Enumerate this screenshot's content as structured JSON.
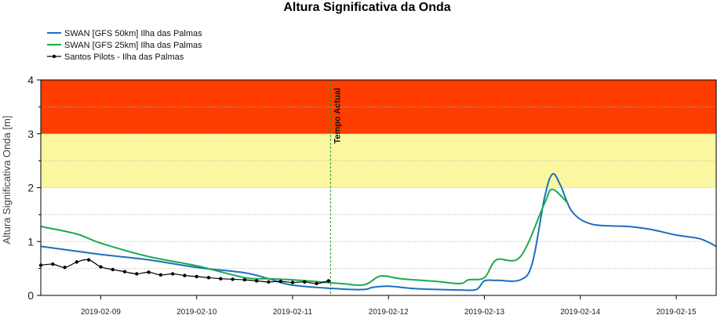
{
  "chart_data": {
    "type": "line",
    "title": "Altura Significativa da Onda",
    "ylabel": "Altura Significativa Onda [m]",
    "xlabel": "",
    "ylim": [
      0,
      4
    ],
    "xlim": [
      "2019-02-08T09:00",
      "2019-02-15T10:00"
    ],
    "yticks": [
      0,
      1,
      2,
      3,
      4
    ],
    "xticks": [
      "2019-02-09",
      "2019-02-10",
      "2019-02-11",
      "2019-02-12",
      "2019-02-13",
      "2019-02-14",
      "2019-02-15"
    ],
    "grid": "horizontal dotted",
    "legend_position": "top-left",
    "bands": [
      {
        "from": 2,
        "to": 3,
        "color": "#fbf7a0"
      },
      {
        "from": 3,
        "to": 4,
        "color": "#ff3d00"
      }
    ],
    "annotations": [
      {
        "text": "Tempo Actual",
        "x": "2019-02-11T09:30",
        "color": "#2a8f2a"
      }
    ],
    "series": [
      {
        "name": "SWAN [GFS 50km] Ilha das Palmas",
        "color": "#1a6fc0",
        "points": [
          [
            "2019-02-08T09:00",
            0.91
          ],
          [
            "2019-02-08T18:00",
            0.82
          ],
          [
            "2019-02-09T00:00",
            0.76
          ],
          [
            "2019-02-09T12:00",
            0.66
          ],
          [
            "2019-02-10T00:00",
            0.52
          ],
          [
            "2019-02-10T12:00",
            0.42
          ],
          [
            "2019-02-10T18:00",
            0.31
          ],
          [
            "2019-02-11T00:00",
            0.19
          ],
          [
            "2019-02-11T12:00",
            0.12
          ],
          [
            "2019-02-11T18:00",
            0.11
          ],
          [
            "2019-02-11T20:00",
            0.15
          ],
          [
            "2019-02-12T00:00",
            0.17
          ],
          [
            "2019-02-12T06:00",
            0.13
          ],
          [
            "2019-02-12T12:00",
            0.11
          ],
          [
            "2019-02-12T18:00",
            0.1
          ],
          [
            "2019-02-12T22:00",
            0.11
          ],
          [
            "2019-02-13T00:00",
            0.27
          ],
          [
            "2019-02-13T03:00",
            0.28
          ],
          [
            "2019-02-13T09:00",
            0.29
          ],
          [
            "2019-02-13T12:00",
            0.6
          ],
          [
            "2019-02-13T15:00",
            1.8
          ],
          [
            "2019-02-13T17:00",
            2.25
          ],
          [
            "2019-02-13T19:00",
            2.05
          ],
          [
            "2019-02-13T22:00",
            1.55
          ],
          [
            "2019-02-14T03:00",
            1.32
          ],
          [
            "2019-02-14T12:00",
            1.28
          ],
          [
            "2019-02-14T18:00",
            1.22
          ],
          [
            "2019-02-15T00:00",
            1.12
          ],
          [
            "2019-02-15T06:00",
            1.05
          ],
          [
            "2019-02-15T10:00",
            0.91
          ]
        ]
      },
      {
        "name": "SWAN [GFS 25km] Ilha das Palmas",
        "color": "#1aaa4a",
        "points": [
          [
            "2019-02-08T09:00",
            1.28
          ],
          [
            "2019-02-08T18:00",
            1.14
          ],
          [
            "2019-02-09T00:00",
            0.97
          ],
          [
            "2019-02-09T12:00",
            0.72
          ],
          [
            "2019-02-10T00:00",
            0.55
          ],
          [
            "2019-02-10T12:00",
            0.33
          ],
          [
            "2019-02-10T18:00",
            0.31
          ],
          [
            "2019-02-11T00:00",
            0.29
          ],
          [
            "2019-02-11T12:00",
            0.22
          ],
          [
            "2019-02-11T18:00",
            0.2
          ],
          [
            "2019-02-11T22:00",
            0.36
          ],
          [
            "2019-02-12T03:00",
            0.31
          ],
          [
            "2019-02-12T12:00",
            0.26
          ],
          [
            "2019-02-12T18:00",
            0.22
          ],
          [
            "2019-02-12T20:00",
            0.29
          ],
          [
            "2019-02-13T00:00",
            0.33
          ],
          [
            "2019-02-13T03:00",
            0.66
          ],
          [
            "2019-02-13T09:00",
            0.72
          ],
          [
            "2019-02-13T15:00",
            1.7
          ],
          [
            "2019-02-13T17:00",
            1.97
          ],
          [
            "2019-02-13T21:00",
            1.7
          ]
        ]
      },
      {
        "name": "Santos Pilots - Ilha das Palmas",
        "color": "#000000",
        "points": [
          [
            "2019-02-08T09:00",
            0.56
          ],
          [
            "2019-02-08T12:00",
            0.58
          ],
          [
            "2019-02-08T15:00",
            0.52
          ],
          [
            "2019-02-08T18:00",
            0.62
          ],
          [
            "2019-02-08T21:00",
            0.66
          ],
          [
            "2019-02-09T00:00",
            0.53
          ],
          [
            "2019-02-09T03:00",
            0.48
          ],
          [
            "2019-02-09T06:00",
            0.44
          ],
          [
            "2019-02-09T09:00",
            0.4
          ],
          [
            "2019-02-09T12:00",
            0.43
          ],
          [
            "2019-02-09T15:00",
            0.38
          ],
          [
            "2019-02-09T18:00",
            0.4
          ],
          [
            "2019-02-09T21:00",
            0.37
          ],
          [
            "2019-02-10T00:00",
            0.35
          ],
          [
            "2019-02-10T03:00",
            0.33
          ],
          [
            "2019-02-10T06:00",
            0.31
          ],
          [
            "2019-02-10T09:00",
            0.3
          ],
          [
            "2019-02-10T12:00",
            0.29
          ],
          [
            "2019-02-10T15:00",
            0.27
          ],
          [
            "2019-02-10T18:00",
            0.25
          ],
          [
            "2019-02-10T21:00",
            0.26
          ],
          [
            "2019-02-11T00:00",
            0.24
          ],
          [
            "2019-02-11T03:00",
            0.25
          ],
          [
            "2019-02-11T06:00",
            0.22
          ],
          [
            "2019-02-11T09:00",
            0.27
          ]
        ]
      }
    ]
  }
}
